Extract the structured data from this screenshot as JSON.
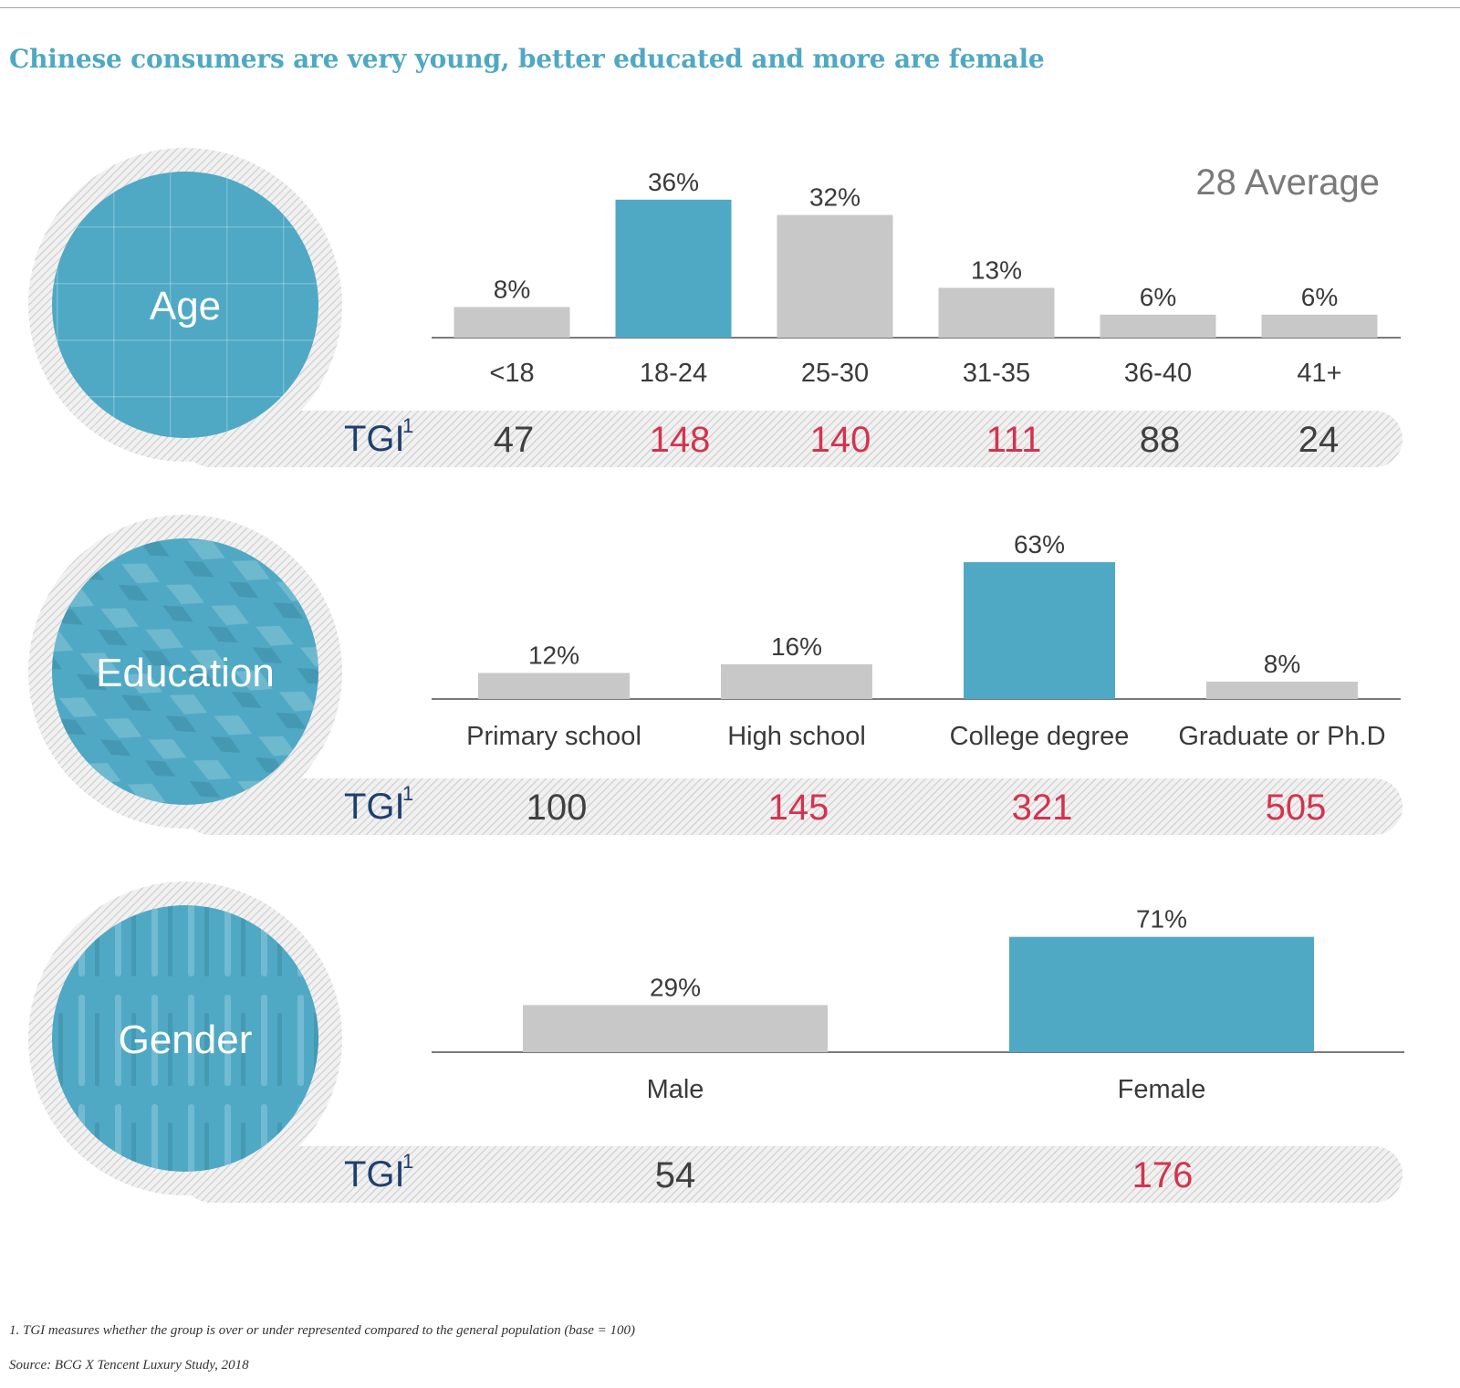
{
  "title": "Chinese consumers are very young, better educated and more are female",
  "colors": {
    "title": "#4fa8c4",
    "highlight_bar": "#4fa9c5",
    "bar": "#c8c8c8",
    "tgi_label": "#1f3f6e",
    "tgi_high": "#d2344f",
    "tgi_normal": "#404040",
    "circle": "#4fa9c5"
  },
  "chart_data": [
    {
      "type": "bar",
      "section": "Age",
      "categories": [
        "<18",
        "18-24",
        "25-30",
        "31-35",
        "36-40",
        "41+"
      ],
      "values": [
        8,
        36,
        32,
        13,
        6,
        6
      ],
      "value_labels": [
        "8%",
        "36%",
        "32%",
        "13%",
        "6%",
        "6%"
      ],
      "highlight": [
        false,
        true,
        false,
        false,
        false,
        false
      ],
      "annotation": "28 Average",
      "tgi_label": "TGI",
      "tgi_superscript": "1",
      "tgi": [
        {
          "value": "47",
          "high": false
        },
        {
          "value": "148",
          "high": true
        },
        {
          "value": "140",
          "high": true
        },
        {
          "value": "111",
          "high": true
        },
        {
          "value": "88",
          "high": false
        },
        {
          "value": "24",
          "high": false
        }
      ]
    },
    {
      "type": "bar",
      "section": "Education",
      "categories": [
        "Primary school",
        "High school",
        "College degree",
        "Graduate or Ph.D"
      ],
      "values": [
        12,
        16,
        63,
        8
      ],
      "value_labels": [
        "12%",
        "16%",
        "63%",
        "8%"
      ],
      "highlight": [
        false,
        false,
        true,
        false
      ],
      "annotation": "",
      "tgi_label": "TGI",
      "tgi_superscript": "1",
      "tgi": [
        {
          "value": "100",
          "high": false
        },
        {
          "value": "145",
          "high": true
        },
        {
          "value": "321",
          "high": true
        },
        {
          "value": "505",
          "high": true
        }
      ]
    },
    {
      "type": "bar",
      "section": "Gender",
      "categories": [
        "Male",
        "Female"
      ],
      "values": [
        29,
        71
      ],
      "value_labels": [
        "29%",
        "71%"
      ],
      "highlight": [
        false,
        true
      ],
      "annotation": "",
      "tgi_label": "TGI",
      "tgi_superscript": "1",
      "tgi": [
        {
          "value": "54",
          "high": false
        },
        {
          "value": "176",
          "high": true
        }
      ]
    }
  ],
  "footnotes": {
    "note": "1. TGI measures whether the group is over or under represented compared to the general population (base = 100)",
    "source": "Source: BCG X Tencent Luxury Study, 2018"
  }
}
